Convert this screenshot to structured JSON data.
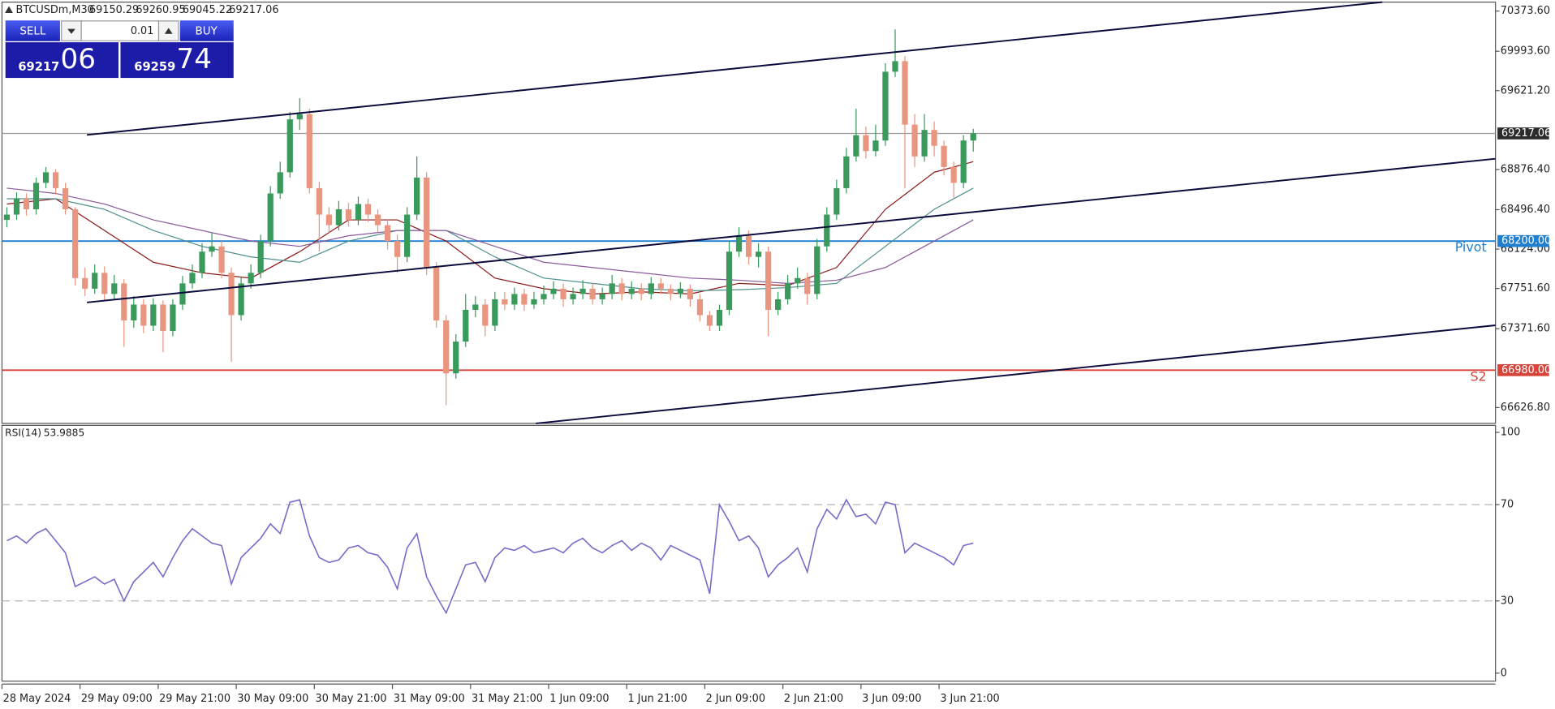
{
  "header": {
    "symbol": "BTCUSDm,M30"
  },
  "trade_panel": {
    "sell": "SELL",
    "buy": "BUY",
    "lot": "0.01",
    "sell_big": "69217",
    "sell_small": "06",
    "buy_big": "69259",
    "buy_small": "74"
  },
  "chart_data": [
    {
      "type": "candlestick",
      "xlim": [
        0,
        153
      ],
      "ylim": [
        66477,
        70458
      ],
      "xticks": [
        {
          "value": 0,
          "label": "28 May 2024"
        },
        {
          "value": 8,
          "label": "29 May 09:00"
        },
        {
          "value": 16,
          "label": "29 May 21:00"
        },
        {
          "value": 24,
          "label": "30 May 09:00"
        },
        {
          "value": 32,
          "label": "30 May 21:00"
        },
        {
          "value": 40,
          "label": "31 May 09:00"
        },
        {
          "value": 48,
          "label": "31 May 21:00"
        },
        {
          "value": 56,
          "label": "1 Jun 09:00"
        },
        {
          "value": 64,
          "label": "1 Jun 21:00"
        },
        {
          "value": 72,
          "label": "2 Jun 09:00"
        },
        {
          "value": 80,
          "label": "2 Jun 21:00"
        },
        {
          "value": 88,
          "label": "3 Jun 09:00"
        },
        {
          "value": 96,
          "label": "3 Jun 21:00"
        }
      ],
      "yticks": [
        {
          "value": 70373.6,
          "label": "70373.60"
        },
        {
          "value": 69993.6,
          "label": "69993.60"
        },
        {
          "value": 69621.2,
          "label": "69621.20"
        },
        {
          "value": 68876.4,
          "label": "68876.40"
        },
        {
          "value": 68496.4,
          "label": "68496.40"
        },
        {
          "value": 68124,
          "label": "68124.00"
        },
        {
          "value": 67751.6,
          "label": "67751.60"
        },
        {
          "value": 67371.6,
          "label": "67371.60"
        },
        {
          "value": 66626.8,
          "label": "66626.80"
        }
      ],
      "grid": false,
      "up_color": "#3a9a5c",
      "down_color": "#e8967f",
      "candles": [
        [
          68400,
          68520,
          68330,
          68450
        ],
        [
          68450,
          68660,
          68400,
          68600
        ],
        [
          68600,
          68650,
          68440,
          68500
        ],
        [
          68500,
          68800,
          68450,
          68750
        ],
        [
          68750,
          68900,
          68700,
          68850
        ],
        [
          68850,
          68880,
          68640,
          68700
        ],
        [
          68700,
          68750,
          68450,
          68500
        ],
        [
          68500,
          68520,
          67780,
          67850
        ],
        [
          67850,
          67950,
          67680,
          67750
        ],
        [
          67750,
          67980,
          67700,
          67900
        ],
        [
          67900,
          67960,
          67640,
          67700
        ],
        [
          67700,
          67880,
          67650,
          67800
        ],
        [
          67800,
          67840,
          67200,
          67450
        ],
        [
          67450,
          67680,
          67380,
          67600
        ],
        [
          67600,
          67650,
          67330,
          67400
        ],
        [
          67400,
          67660,
          67350,
          67600
        ],
        [
          67600,
          67640,
          67150,
          67350
        ],
        [
          67350,
          67650,
          67300,
          67600
        ],
        [
          67600,
          67870,
          67550,
          67800
        ],
        [
          67800,
          67980,
          67750,
          67900
        ],
        [
          67900,
          68180,
          67850,
          68100
        ],
        [
          68100,
          68280,
          68050,
          68150
        ],
        [
          68150,
          68200,
          67850,
          67900
        ],
        [
          67900,
          67950,
          67060,
          67500
        ],
        [
          67500,
          67860,
          67450,
          67800
        ],
        [
          67800,
          67980,
          67750,
          67900
        ],
        [
          67900,
          68260,
          67850,
          68200
        ],
        [
          68200,
          68720,
          68150,
          68650
        ],
        [
          68650,
          68950,
          68600,
          68850
        ],
        [
          68850,
          69420,
          68800,
          69350
        ],
        [
          69350,
          69550,
          69250,
          69400
        ],
        [
          69400,
          69450,
          68650,
          68700
        ],
        [
          68700,
          68760,
          68100,
          68450
        ],
        [
          68450,
          68520,
          68280,
          68350
        ],
        [
          68350,
          68580,
          68300,
          68500
        ],
        [
          68500,
          68560,
          68340,
          68400
        ],
        [
          68400,
          68620,
          68350,
          68550
        ],
        [
          68550,
          68600,
          68380,
          68450
        ],
        [
          68450,
          68500,
          68280,
          68350
        ],
        [
          68350,
          68400,
          68120,
          68200
        ],
        [
          68200,
          68260,
          67900,
          68050
        ],
        [
          68050,
          68520,
          68000,
          68450
        ],
        [
          68450,
          69000,
          68400,
          68800
        ],
        [
          68800,
          68850,
          67880,
          67950
        ],
        [
          67950,
          68000,
          67380,
          67450
        ],
        [
          67450,
          67500,
          66650,
          66950
        ],
        [
          66950,
          67320,
          66900,
          67250
        ],
        [
          67250,
          67700,
          67200,
          67550
        ],
        [
          67550,
          67680,
          67480,
          67600
        ],
        [
          67600,
          67650,
          67300,
          67400
        ],
        [
          67400,
          67720,
          67350,
          67650
        ],
        [
          67650,
          67720,
          67550,
          67600
        ],
        [
          67600,
          67760,
          67550,
          67700
        ],
        [
          67700,
          67750,
          67540,
          67600
        ],
        [
          67600,
          67720,
          67560,
          67650
        ],
        [
          67650,
          67780,
          67600,
          67700
        ],
        [
          67700,
          67820,
          67650,
          67750
        ],
        [
          67750,
          67800,
          67580,
          67650
        ],
        [
          67650,
          67760,
          67600,
          67700
        ],
        [
          67700,
          67830,
          67650,
          67750
        ],
        [
          67750,
          67800,
          67600,
          67650
        ],
        [
          67650,
          67760,
          67600,
          67700
        ],
        [
          67700,
          67880,
          67650,
          67800
        ],
        [
          67800,
          67850,
          67640,
          67700
        ],
        [
          67700,
          67820,
          67650,
          67750
        ],
        [
          67750,
          67800,
          67640,
          67700
        ],
        [
          67700,
          67860,
          67650,
          67800
        ],
        [
          67800,
          67850,
          67700,
          67750
        ],
        [
          67750,
          67790,
          67640,
          67700
        ],
        [
          67700,
          67810,
          67660,
          67750
        ],
        [
          67750,
          67790,
          67580,
          67650
        ],
        [
          67650,
          67700,
          67440,
          67500
        ],
        [
          67500,
          67540,
          67350,
          67400
        ],
        [
          67400,
          67600,
          67350,
          67550
        ],
        [
          67550,
          68200,
          67500,
          68100
        ],
        [
          68100,
          68330,
          68050,
          68250
        ],
        [
          68250,
          68300,
          67980,
          68050
        ],
        [
          68050,
          68180,
          67950,
          68100
        ],
        [
          68100,
          68150,
          67300,
          67550
        ],
        [
          67550,
          67720,
          67500,
          67650
        ],
        [
          67650,
          67880,
          67600,
          67800
        ],
        [
          67800,
          67950,
          67750,
          67850
        ],
        [
          67850,
          67900,
          67600,
          67700
        ],
        [
          67700,
          68220,
          67650,
          68150
        ],
        [
          68150,
          68520,
          68100,
          68450
        ],
        [
          68450,
          68780,
          68400,
          68700
        ],
        [
          68700,
          69080,
          68650,
          69000
        ],
        [
          69000,
          69450,
          68950,
          69200
        ],
        [
          69200,
          69280,
          68980,
          69050
        ],
        [
          69050,
          69300,
          69000,
          69150
        ],
        [
          69150,
          69880,
          69100,
          69800
        ],
        [
          69800,
          70200,
          69750,
          69900
        ],
        [
          69900,
          69950,
          68700,
          69300
        ],
        [
          69300,
          69400,
          68900,
          69000
        ],
        [
          69000,
          69400,
          68950,
          69250
        ],
        [
          69250,
          69330,
          69000,
          69100
        ],
        [
          69100,
          69150,
          68820,
          68900
        ],
        [
          68900,
          68950,
          68600,
          68750
        ],
        [
          68750,
          69200,
          68700,
          69150.29
        ],
        [
          69150.29,
          69260.95,
          69045.22,
          69217.06
        ]
      ],
      "moving_averages": [
        {
          "color": "#8b1a1a",
          "x": [
            0,
            5,
            10,
            15,
            20,
            25,
            30,
            35,
            40,
            45,
            50,
            55,
            60,
            65,
            70,
            75,
            80,
            85,
            90,
            95,
            99
          ],
          "values": [
            68550,
            68600,
            68300,
            68000,
            67900,
            67850,
            68100,
            68400,
            68400,
            68200,
            67850,
            67750,
            67700,
            67720,
            67700,
            67800,
            67780,
            67950,
            68500,
            68850,
            68950
          ]
        },
        {
          "color": "#4f8f8f",
          "x": [
            0,
            5,
            10,
            15,
            20,
            25,
            30,
            35,
            40,
            45,
            50,
            55,
            60,
            65,
            70,
            75,
            80,
            85,
            90,
            95,
            99
          ],
          "values": [
            68600,
            68600,
            68500,
            68300,
            68150,
            68050,
            68000,
            68200,
            68300,
            68300,
            68050,
            67850,
            67800,
            67750,
            67730,
            67740,
            67760,
            67800,
            68150,
            68500,
            68700
          ]
        },
        {
          "color": "#8b5a9b",
          "x": [
            0,
            5,
            10,
            15,
            20,
            25,
            30,
            35,
            40,
            45,
            50,
            55,
            60,
            65,
            70,
            75,
            80,
            85,
            90,
            95,
            99
          ],
          "values": [
            68700,
            68650,
            68550,
            68400,
            68300,
            68200,
            68150,
            68250,
            68300,
            68300,
            68150,
            68000,
            67950,
            67900,
            67850,
            67830,
            67800,
            67830,
            67950,
            68200,
            68400
          ]
        }
      ],
      "trendlines": [
        {
          "color": "#0a0a3c",
          "x": [
            8.7,
            141.4
          ],
          "y": [
            69203,
            70458
          ]
        },
        {
          "color": "#0a0a3c",
          "x": [
            8.7,
            153
          ],
          "y": [
            67620,
            68978
          ]
        },
        {
          "color": "#0a0a3c",
          "x": [
            54.7,
            153
          ],
          "y": [
            66477,
            67404
          ]
        }
      ],
      "levels": [
        {
          "name": "Pivot",
          "value": 68200,
          "label": "68200.00",
          "color": "#1e7fd0"
        },
        {
          "name": "S2",
          "value": 66980,
          "label": "66980.00",
          "color": "#d9443a"
        }
      ],
      "last_price_color": "#9a9a9a"
    },
    {
      "type": "line",
      "name": "RSI(14)",
      "color": "#7b68c8",
      "ylim": [
        -3.3,
        102.9
      ],
      "yticks": [
        0,
        30,
        70,
        100
      ],
      "levels": [
        70,
        30
      ],
      "values": [
        55,
        57,
        54,
        58,
        60,
        55,
        50,
        36,
        38,
        40,
        37,
        39,
        30,
        38,
        42,
        46,
        40,
        48,
        55,
        60,
        57,
        54,
        53,
        37,
        48,
        52,
        56,
        62,
        58,
        71,
        72,
        57,
        48,
        46,
        47,
        52,
        53,
        50,
        49,
        44,
        35,
        52,
        58,
        40,
        32,
        25,
        35,
        45,
        46,
        38,
        48,
        52,
        51,
        53,
        50,
        51,
        52,
        50,
        54,
        56,
        52,
        50,
        53,
        55,
        51,
        54,
        52,
        47,
        53,
        51,
        49,
        47,
        33,
        70,
        63,
        55,
        57,
        52,
        40,
        45,
        48,
        52,
        42,
        60,
        68,
        64,
        72,
        65,
        66,
        62,
        71,
        70,
        50,
        54,
        52,
        50,
        48,
        45,
        53,
        53.9885
      ]
    }
  ]
}
